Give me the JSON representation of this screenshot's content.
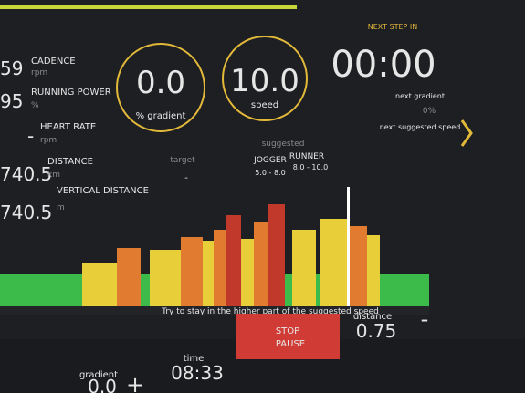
{
  "metrics": [
    {
      "value": "59",
      "label": "CADENCE",
      "unit": "rpm"
    },
    {
      "value": "95",
      "label": "RUNNING POWER",
      "unit": "%"
    },
    {
      "value": "-",
      "label": "HEART RATE",
      "unit": "rpm"
    },
    {
      "value": "740.5",
      "label": "DISTANCE",
      "unit": "km"
    },
    {
      "value": "740.5",
      "label": "VERTICAL DISTANCE",
      "unit": "m"
    }
  ],
  "gauges": [
    {
      "value": "0.0",
      "label": "% gradient"
    },
    {
      "value": "10.0",
      "label": "speed"
    }
  ],
  "next_step": {
    "label": "NEXT STEP IN",
    "time": "00:00",
    "next_gradient": "next gradient",
    "gradient_value": "0%",
    "next_speed": "next suggested speed"
  },
  "target": {
    "label": "target",
    "value": "-"
  },
  "suggested": {
    "label": "suggested",
    "levels": [
      {
        "name": "JOGGER",
        "range": "5.0 - 8.0"
      },
      {
        "name": "RUNNER",
        "range": "8.0 - 10.0"
      }
    ]
  },
  "hint": "Try to stay in the higher part of the suggested speed",
  "bottom": {
    "gradient_label": "gradient",
    "gradient_value": "0.0",
    "plus": "+",
    "time_label": "time",
    "time_value": "08:33",
    "stop": "STOP",
    "pause": "PAUSE",
    "distance_label": "distance",
    "distance_value": "0.75",
    "minus": "-"
  }
}
